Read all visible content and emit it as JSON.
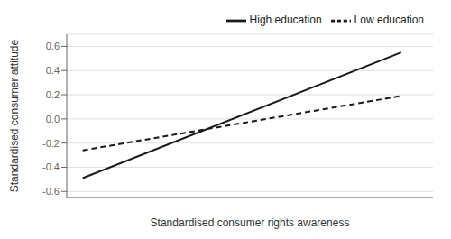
{
  "chart_data": {
    "type": "line",
    "x": [
      0,
      1
    ],
    "series": [
      {
        "name": "Low education",
        "color": "#1a1a1a",
        "line_style": "dashed",
        "values": [
          -0.26,
          0.19
        ]
      },
      {
        "name": "High education",
        "color": "#1a1a1a",
        "line_style": "solid",
        "values": [
          -0.49,
          0.55
        ]
      }
    ],
    "xlabel": "Standardised consumer rights awareness",
    "ylabel": "Standardised consumer attitude",
    "xlim": [
      -0.05,
      1.1
    ],
    "ylim": [
      -0.65,
      0.7
    ],
    "yticks": [
      -0.6,
      -0.4,
      -0.2,
      {
        "value": 0,
        "label": "0.0"
      },
      0.2,
      0.4,
      0.6
    ],
    "grid": true,
    "legend": "upper right",
    "tick_labels": "y"
  }
}
